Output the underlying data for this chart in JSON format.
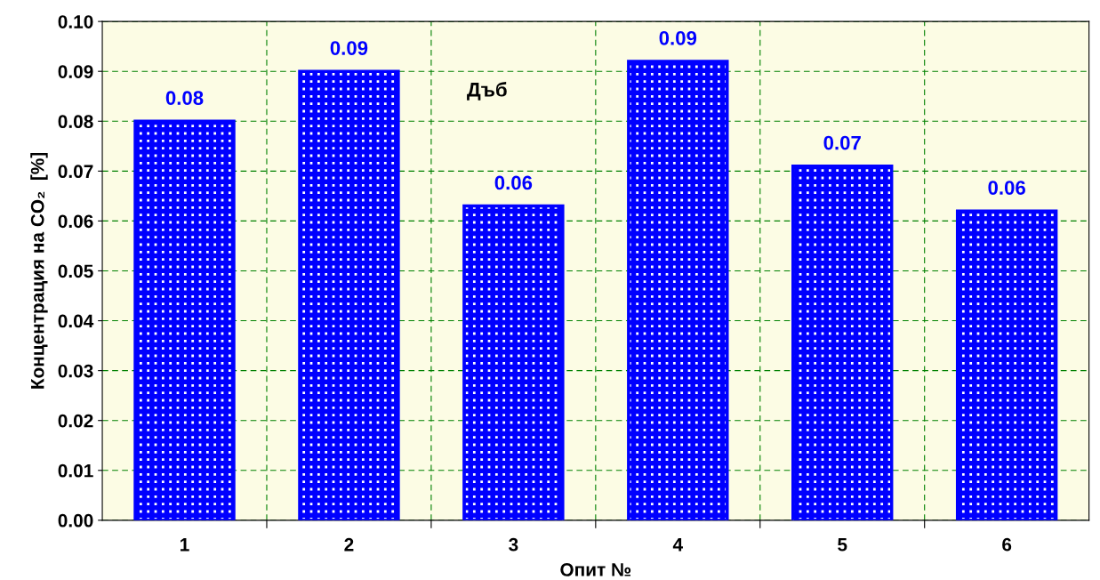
{
  "chart_data": {
    "type": "bar",
    "xlabel": "Опит №",
    "ylabel": "Концентрация на CO₂  [%]",
    "annotations": [
      "Дъб"
    ],
    "categories": [
      "1",
      "2",
      "3",
      "4",
      "5",
      "6"
    ],
    "values": [
      0.08,
      0.09,
      0.063,
      0.092,
      0.071,
      0.062
    ],
    "value_labels": [
      "0.08",
      "0.09",
      "0.06",
      "0.09",
      "0.07",
      "0.06"
    ],
    "color": "#0000ff",
    "ylim": [
      0,
      0.1
    ],
    "yticks": [
      {
        "value": 0,
        "label": "0.00"
      },
      {
        "value": 0.01,
        "label": "0.01"
      },
      {
        "value": 0.02,
        "label": "0.02"
      },
      {
        "value": 0.03,
        "label": "0.03"
      },
      {
        "value": 0.04,
        "label": "0.04"
      },
      {
        "value": 0.05,
        "label": "0.05"
      },
      {
        "value": 0.06,
        "label": "0.06"
      },
      {
        "value": 0.07,
        "label": "0.07"
      },
      {
        "value": 0.08,
        "label": "0.08"
      },
      {
        "value": 0.09,
        "label": "0.09"
      },
      {
        "value": 0.1,
        "label": "0.10"
      }
    ],
    "grid": true
  }
}
